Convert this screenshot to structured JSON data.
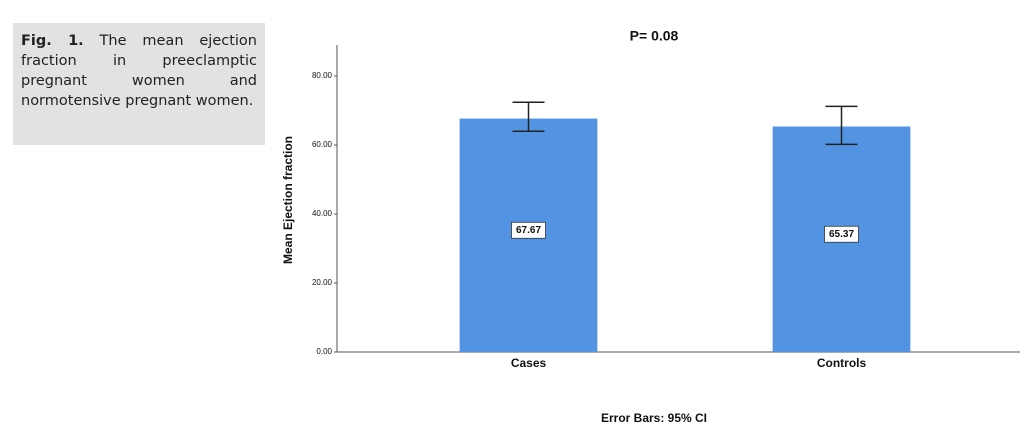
{
  "caption": {
    "label": "Fig. 1.",
    "text": "The mean ejection fraction in preeclamptic pregnant women and normotensive pregnant women."
  },
  "chart_data": {
    "type": "bar",
    "title": "P= 0.08",
    "ylabel": "Mean Ejection fraction",
    "note": "Error Bars: 95% CI",
    "categories": [
      "Cases",
      "Controls"
    ],
    "values": [
      67.67,
      65.37
    ],
    "color": "#5294e2",
    "ci_low": [
      64.0,
      60.2
    ],
    "ci_high": [
      72.4,
      71.2
    ],
    "ylim": [
      0,
      89
    ],
    "yticks": [
      {
        "value": 0,
        "label": "0.00"
      },
      {
        "value": 20,
        "label": "20.00"
      },
      {
        "value": 40,
        "label": "40.00"
      },
      {
        "value": 60,
        "label": "60.00"
      },
      {
        "value": 80,
        "label": "80.00"
      }
    ]
  }
}
